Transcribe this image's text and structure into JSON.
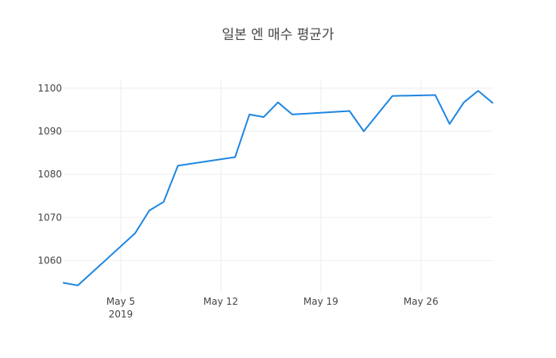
{
  "chart_data": {
    "type": "line",
    "title": "일본 엔 매수 평균가",
    "xlabel": "",
    "ylabel": "",
    "x_range": [
      "2019-05-01",
      "2019-05-31"
    ],
    "ylim": [
      1052.5,
      1102
    ],
    "grid": true,
    "x_ticks": [
      {
        "date": "2019-05-05",
        "label": "May 5",
        "sublabel": "2019"
      },
      {
        "date": "2019-05-12",
        "label": "May 12",
        "sublabel": ""
      },
      {
        "date": "2019-05-19",
        "label": "May 19",
        "sublabel": ""
      },
      {
        "date": "2019-05-26",
        "label": "May 26",
        "sublabel": ""
      }
    ],
    "y_ticks": [
      1060,
      1070,
      1080,
      1090,
      1100
    ],
    "series": [
      {
        "color": "#1f86e0",
        "points": [
          {
            "x": "2019-05-01",
            "y": 1054.8
          },
          {
            "x": "2019-05-02",
            "y": 1054.2
          },
          {
            "x": "2019-05-06",
            "y": 1066.3
          },
          {
            "x": "2019-05-07",
            "y": 1071.6
          },
          {
            "x": "2019-05-08",
            "y": 1073.6
          },
          {
            "x": "2019-05-09",
            "y": 1082.0
          },
          {
            "x": "2019-05-13",
            "y": 1084.0
          },
          {
            "x": "2019-05-14",
            "y": 1093.9
          },
          {
            "x": "2019-05-15",
            "y": 1093.3
          },
          {
            "x": "2019-05-16",
            "y": 1096.7
          },
          {
            "x": "2019-05-17",
            "y": 1093.9
          },
          {
            "x": "2019-05-21",
            "y": 1094.7
          },
          {
            "x": "2019-05-22",
            "y": 1090.0
          },
          {
            "x": "2019-05-24",
            "y": 1098.2
          },
          {
            "x": "2019-05-27",
            "y": 1098.4
          },
          {
            "x": "2019-05-28",
            "y": 1091.7
          },
          {
            "x": "2019-05-29",
            "y": 1096.7
          },
          {
            "x": "2019-05-30",
            "y": 1099.4
          },
          {
            "x": "2019-05-31",
            "y": 1096.6
          }
        ]
      }
    ]
  }
}
